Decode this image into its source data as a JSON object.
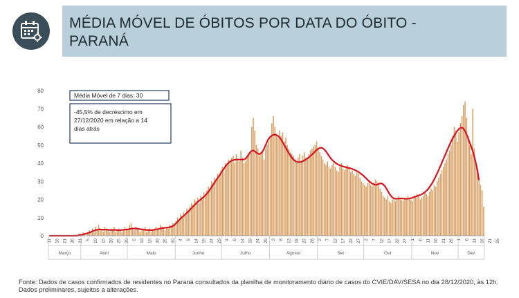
{
  "header": {
    "title": "MÉDIA MÓVEL DE ÓBITOS POR DATA DO ÓBITO -\nPARANÁ",
    "icon": "calendar-virus-icon"
  },
  "annotations": {
    "moving_avg": "Média Móvel de 7 dias: 30",
    "decrease": [
      "-45,5% de decréscimo em",
      "27/12/2020  em relação a 14",
      "dias atrás"
    ]
  },
  "footer": {
    "source": "Fonte: Dados de casos confirmados de residentes no Paraná consultados da planilha de monitoramento diário de casos do CVIE/DAV/SESA no dia 28/12/2020, às 12h. Dados preliminares, sujeitos a alterações."
  },
  "colors": {
    "bars": "#d9a066",
    "line": "#d6131f",
    "banner": "#b9cfd9",
    "icon_bg": "#3b4f5b"
  },
  "chart_data": {
    "type": "bar",
    "overlay": "line",
    "ylim": [
      0,
      80
    ],
    "yticks": [
      0,
      10,
      20,
      30,
      40,
      50,
      60,
      70,
      80
    ],
    "grid": false,
    "months": [
      "Março",
      "Abril",
      "Maio",
      "Junho",
      "Julho",
      "Agosto",
      "Set",
      "Out",
      "Nov",
      "Dez"
    ],
    "day_ticks": [
      "11",
      "16",
      "21",
      "26",
      "31",
      "5",
      "10",
      "15",
      "20",
      "25",
      "30",
      "5",
      "10",
      "15",
      "20",
      "25",
      "30",
      "4",
      "9",
      "14",
      "19",
      "24",
      "29",
      "4",
      "9",
      "14",
      "19",
      "24",
      "29",
      "3",
      "8",
      "13",
      "18",
      "23",
      "28",
      "2",
      "7",
      "12",
      "17",
      "22",
      "27",
      "2",
      "7",
      "12",
      "17",
      "22",
      "27",
      "1",
      "6",
      "11",
      "16",
      "21",
      "26",
      "1",
      "6",
      "11",
      "16",
      "21",
      "26"
    ],
    "series": [
      {
        "name": "",
        "kind": "bar",
        "x_start": "2020-03-11",
        "values": [
          0,
          0,
          0,
          0,
          0,
          0,
          0,
          0,
          0,
          0,
          0,
          0,
          0,
          0,
          0,
          0,
          0,
          0,
          0,
          1,
          1,
          0,
          2,
          1,
          0,
          1,
          3,
          2,
          4,
          2,
          5,
          3,
          6,
          4,
          3,
          2,
          5,
          4,
          3,
          2,
          4,
          3,
          5,
          2,
          3,
          4,
          3,
          2,
          3,
          5,
          4,
          3,
          6,
          7,
          4,
          3,
          5,
          4,
          3,
          2,
          4,
          3,
          5,
          2,
          3,
          4,
          2,
          3,
          4,
          5,
          4,
          3,
          6,
          5,
          4,
          3,
          5,
          4,
          6,
          5,
          7,
          6,
          8,
          10,
          9,
          12,
          11,
          13,
          12,
          15,
          14,
          16,
          18,
          17,
          20,
          19,
          21,
          18,
          22,
          20,
          24,
          23,
          25,
          27,
          26,
          30,
          29,
          32,
          31,
          34,
          33,
          36,
          38,
          35,
          40,
          39,
          42,
          41,
          43,
          44,
          40,
          45,
          42,
          41,
          47,
          43,
          40,
          41,
          44,
          45,
          46,
          60,
          65,
          58,
          50,
          48,
          44,
          46,
          47,
          42,
          48,
          50,
          52,
          55,
          62,
          66,
          60,
          56,
          54,
          58,
          55,
          57,
          52,
          54,
          50,
          48,
          46,
          45,
          44,
          42,
          40,
          43,
          45,
          41,
          44,
          46,
          43,
          42,
          45,
          47,
          48,
          49,
          50,
          52,
          48,
          46,
          44,
          42,
          40,
          39,
          41,
          38,
          37,
          39,
          40,
          38,
          36,
          35,
          38,
          40,
          37,
          36,
          38,
          39,
          37,
          35,
          36,
          34,
          33,
          35,
          34,
          32,
          30,
          29,
          28,
          27,
          29,
          30,
          28,
          27,
          29,
          31,
          30,
          28,
          26,
          24,
          22,
          21,
          20,
          22,
          19,
          18,
          20,
          21,
          19,
          20,
          22,
          21,
          20,
          19,
          21,
          20,
          22,
          21,
          20,
          19,
          22,
          21,
          23,
          22,
          20,
          21,
          22,
          24,
          23,
          22,
          24,
          26,
          25,
          28,
          27,
          30,
          32,
          34,
          36,
          38,
          40,
          42,
          45,
          47,
          50,
          55,
          60,
          58,
          52,
          57,
          62,
          66,
          72,
          74,
          65,
          55,
          50,
          45,
          70,
          48,
          40,
          35,
          30,
          28,
          25,
          16
        ]
      },
      {
        "name": "",
        "kind": "line",
        "x_start": "2020-03-11",
        "values": [
          0,
          0,
          0,
          0,
          0,
          0,
          0,
          0,
          0,
          0,
          0,
          0,
          0,
          0,
          0,
          0,
          0,
          0,
          0,
          0.3,
          0.5,
          0.6,
          0.8,
          1,
          1.2,
          1.5,
          1.8,
          2.1,
          2.5,
          2.8,
          3.1,
          3.3,
          3.5,
          3.5,
          3.4,
          3.3,
          3.4,
          3.4,
          3.3,
          3.2,
          3.2,
          3.2,
          3.3,
          3.2,
          3.1,
          3.1,
          3.1,
          3.2,
          3.3,
          3.4,
          3.4,
          3.5,
          3.7,
          3.9,
          4,
          4,
          4,
          3.9,
          3.8,
          3.6,
          3.5,
          3.4,
          3.3,
          3.2,
          3.2,
          3.1,
          3.1,
          3.2,
          3.3,
          3.5,
          3.6,
          3.8,
          4,
          4.2,
          4.3,
          4.4,
          4.5,
          4.6,
          4.8,
          5,
          5.4,
          6,
          6.8,
          7.7,
          8.6,
          9.5,
          10.3,
          11,
          11.8,
          12.6,
          13.4,
          14.3,
          15.2,
          16.1,
          17,
          17.8,
          18.6,
          19.3,
          20,
          20.7,
          21.4,
          22.3,
          23.2,
          24.3,
          25.5,
          26.8,
          28.1,
          29.4,
          30.7,
          31.9,
          33.1,
          34.4,
          35.7,
          37,
          38.2,
          39.3,
          40.2,
          40.9,
          41.4,
          41.7,
          41.9,
          42,
          42,
          42,
          42,
          42,
          42,
          42.5,
          43.5,
          44.8,
          46,
          46.8,
          47,
          46.5,
          45.8,
          45.2,
          45,
          45.5,
          46.5,
          48,
          50,
          52,
          53.5,
          54.5,
          55.2,
          55.6,
          55.8,
          55.5,
          55,
          54.2,
          53,
          51.5,
          50,
          48.5,
          47,
          45.5,
          44.2,
          43,
          42,
          41.3,
          40.8,
          40.6,
          40.6,
          40.8,
          41.1,
          41.5,
          42,
          42.6,
          43.3,
          44,
          44.8,
          45.6,
          46.5,
          47.3,
          48,
          48.4,
          48.5,
          48.2,
          47.5,
          46.5,
          45.3,
          44,
          42.8,
          41.8,
          41,
          40.3,
          39.7,
          39.2,
          38.8,
          38.5,
          38.2,
          38,
          37.8,
          37.5,
          37.3,
          37.1,
          36.8,
          36.5,
          36.1,
          35.7,
          35.2,
          34.6,
          34,
          33.3,
          32.5,
          31.7,
          30.8,
          30,
          29.3,
          28.7,
          28.3,
          28.1,
          28.2,
          28.5,
          28.8,
          28.8,
          28.4,
          27.5,
          26.2,
          24.7,
          23.2,
          22,
          21.1,
          20.6,
          20.4,
          20.4,
          20.5,
          20.6,
          20.6,
          20.5,
          20.4,
          20.4,
          20.4,
          20.5,
          20.7,
          21,
          21.3,
          21.6,
          21.9,
          22.2,
          22.5,
          22.9,
          23.4,
          24,
          24.8,
          25.7,
          26.8,
          28,
          29.4,
          31,
          32.7,
          34.5,
          36.4,
          38.3,
          40.3,
          42.3,
          44.3,
          46.3,
          48.3,
          50.2,
          52,
          53.7,
          55.2,
          56.6,
          57.8,
          58.8,
          59.5,
          59.6,
          59,
          57.7,
          55.8,
          53.6,
          51.3,
          49,
          46.5,
          43.5,
          40,
          36,
          30.5
        ]
      }
    ]
  }
}
